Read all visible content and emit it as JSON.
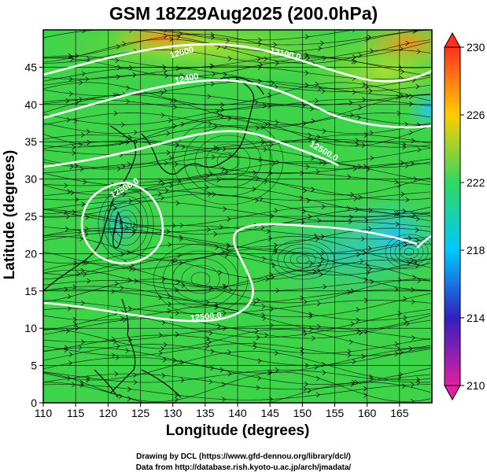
{
  "chart_data": {
    "type": "heatmap",
    "title": "GSM 18Z29Aug2025 (200.0hPa)",
    "xlabel": "Longitude (degrees)",
    "ylabel": "Latitude  (degrees)",
    "x_ticks": [
      110,
      115,
      120,
      125,
      130,
      135,
      140,
      145,
      150,
      155,
      160,
      165
    ],
    "y_ticks": [
      0,
      5,
      10,
      15,
      20,
      25,
      30,
      35,
      40,
      45
    ],
    "xlim": [
      110,
      170
    ],
    "ylim": [
      0,
      50
    ],
    "grid": true,
    "colorbar": {
      "ticks": [
        210,
        214,
        218,
        222,
        226,
        230
      ],
      "range": [
        210,
        230
      ],
      "colors": [
        "#e020a0",
        "#3020c0",
        "#00c8ff",
        "#30d860",
        "#ffcc00",
        "#ff3020"
      ]
    },
    "contour_labels": [
      "12000",
      "12100.0",
      "12400",
      "12500.0",
      "12500.0",
      "12500.0"
    ]
  },
  "credits": {
    "line1": "Drawing by DCL (https://www.gfd-dennou.org/library/dcl/)",
    "line2": "Data from http://database.rish.kyoto-u.ac.jp/arch/jmadata/"
  }
}
